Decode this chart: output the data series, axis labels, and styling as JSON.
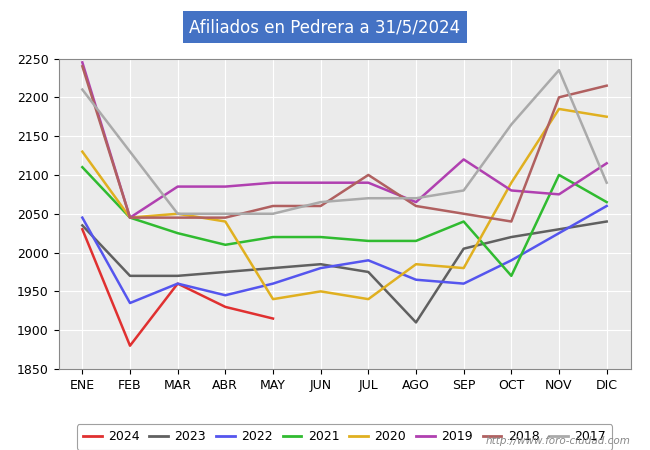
{
  "title": "Afiliados en Pedrera a 31/5/2024",
  "title_bg_color": "#4472c4",
  "title_text_color": "#ffffff",
  "ylim": [
    1850,
    2250
  ],
  "yticks": [
    1850,
    1900,
    1950,
    2000,
    2050,
    2100,
    2150,
    2200,
    2250
  ],
  "months": [
    "ENE",
    "FEB",
    "MAR",
    "ABR",
    "MAY",
    "JUN",
    "JUL",
    "AGO",
    "SEP",
    "OCT",
    "NOV",
    "DIC"
  ],
  "watermark": "http://www.foro-ciudad.com",
  "series": {
    "2024": {
      "color": "#e03030",
      "linewidth": 1.8,
      "data": [
        2030,
        1880,
        1960,
        1930,
        1915,
        null,
        null,
        null,
        null,
        null,
        null,
        null
      ]
    },
    "2023": {
      "color": "#606060",
      "linewidth": 1.8,
      "data": [
        2035,
        1970,
        1970,
        1975,
        1980,
        1985,
        1975,
        1910,
        2005,
        2020,
        2030,
        2040
      ]
    },
    "2022": {
      "color": "#5555ee",
      "linewidth": 1.8,
      "data": [
        2045,
        1935,
        1960,
        1945,
        1960,
        1980,
        1990,
        1965,
        1960,
        1990,
        2025,
        2060
      ]
    },
    "2021": {
      "color": "#30bb30",
      "linewidth": 1.8,
      "data": [
        2110,
        2045,
        2025,
        2010,
        2020,
        2020,
        2015,
        2015,
        2040,
        1970,
        2100,
        2065
      ]
    },
    "2020": {
      "color": "#e0b020",
      "linewidth": 1.8,
      "data": [
        2130,
        2045,
        2050,
        2040,
        1940,
        1950,
        1940,
        1985,
        1980,
        2090,
        2185,
        2175
      ]
    },
    "2019": {
      "color": "#b040b0",
      "linewidth": 1.8,
      "data": [
        2245,
        2045,
        2085,
        2085,
        2090,
        2090,
        2090,
        2065,
        2120,
        2080,
        2075,
        2115
      ]
    },
    "2018": {
      "color": "#b06060",
      "linewidth": 1.8,
      "data": [
        2240,
        2045,
        2045,
        2045,
        2060,
        2060,
        2100,
        2060,
        2050,
        2040,
        2200,
        2215
      ]
    },
    "2017": {
      "color": "#aaaaaa",
      "linewidth": 1.8,
      "data": [
        2210,
        2130,
        2050,
        2050,
        2050,
        2065,
        2070,
        2070,
        2080,
        2165,
        2235,
        2090
      ]
    }
  },
  "legend_order": [
    "2024",
    "2023",
    "2022",
    "2021",
    "2020",
    "2019",
    "2018",
    "2017"
  ]
}
